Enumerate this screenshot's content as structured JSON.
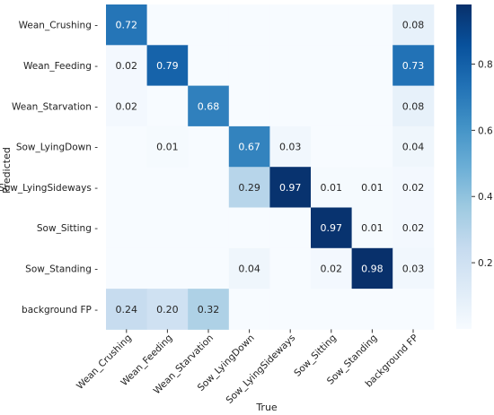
{
  "chart_data": {
    "type": "heatmap",
    "xlabel": "True",
    "ylabel": "Predicted",
    "x_categories": [
      "Wean_Crushing",
      "Wean_Feeding",
      "Wean_Starvation",
      "Sow_LyingDown",
      "Sow_LyingSideways",
      "Sow_Sitting",
      "Sow_Standing",
      "background FP"
    ],
    "y_categories": [
      "Wean_Crushing",
      "Wean_Feeding",
      "Wean_Starvation",
      "Sow_LyingDown",
      "Sow_LyingSideways",
      "Sow_Sitting",
      "Sow_Standing",
      "background FP"
    ],
    "values": [
      [
        0.72,
        null,
        null,
        null,
        null,
        null,
        null,
        0.08
      ],
      [
        0.02,
        0.79,
        null,
        null,
        null,
        null,
        null,
        0.73
      ],
      [
        0.02,
        null,
        0.68,
        null,
        null,
        null,
        null,
        0.08
      ],
      [
        null,
        0.01,
        null,
        0.67,
        0.03,
        null,
        null,
        0.04
      ],
      [
        null,
        null,
        null,
        0.29,
        0.97,
        0.01,
        0.01,
        0.02
      ],
      [
        null,
        null,
        null,
        null,
        null,
        0.97,
        0.01,
        0.02
      ],
      [
        null,
        null,
        null,
        0.04,
        null,
        0.02,
        0.98,
        0.03
      ],
      [
        0.24,
        0.2,
        0.32,
        null,
        null,
        null,
        null,
        null
      ]
    ],
    "colorbar": {
      "min": 0,
      "max": 0.98,
      "ticks": [
        0.2,
        0.4,
        0.6,
        0.8
      ]
    },
    "colormap": [
      "#f7fbff",
      "#deebf7",
      "#c6dbef",
      "#9ecae1",
      "#6baed6",
      "#4292c6",
      "#2171b5",
      "#08519c",
      "#08306b"
    ]
  }
}
